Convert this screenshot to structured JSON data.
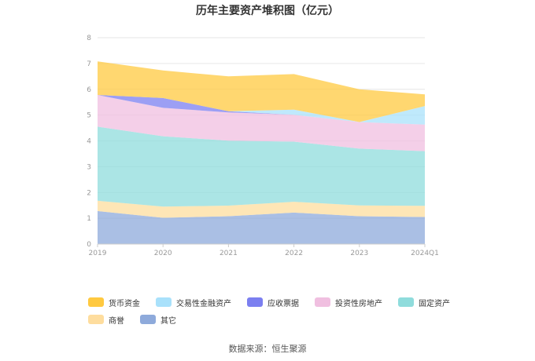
{
  "source_label": "数据来源：恒生聚源",
  "chart_data": {
    "type": "area",
    "stacked": true,
    "title": "历年主要资产堆积图（亿元）",
    "categories": [
      "2019",
      "2020",
      "2021",
      "2022",
      "2023",
      "2024Q1"
    ],
    "ylim": [
      0,
      8
    ],
    "yticks": [
      "0",
      "1",
      "2",
      "3",
      "4",
      "5",
      "6",
      "7",
      "8"
    ],
    "grid": true,
    "legend_position": "bottom",
    "series": [
      {
        "name": "其它",
        "color": "#8eaadb",
        "values": [
          1.28,
          1.02,
          1.08,
          1.22,
          1.08,
          1.05
        ]
      },
      {
        "name": "商誉",
        "color": "#fedd9e",
        "values": [
          0.4,
          0.43,
          0.41,
          0.42,
          0.42,
          0.43
        ]
      },
      {
        "name": "固定资产",
        "color": "#8fdcdc",
        "values": [
          2.87,
          2.73,
          2.52,
          2.33,
          2.2,
          2.12
        ]
      },
      {
        "name": "投资性房地产",
        "color": "#f0bfe0",
        "values": [
          1.23,
          1.1,
          1.09,
          1.04,
          1.03,
          1.03
        ]
      },
      {
        "name": "应收票据",
        "color": "#7b7ff0",
        "values": [
          0.0,
          0.38,
          0.05,
          0.0,
          0.0,
          0.0
        ]
      },
      {
        "name": "交易性金融资产",
        "color": "#a9e1fb",
        "values": [
          0.0,
          0.0,
          0.0,
          0.2,
          0.0,
          0.72
        ]
      },
      {
        "name": "货币资金",
        "color": "#ffc940",
        "values": [
          1.3,
          1.07,
          1.35,
          1.38,
          1.27,
          0.45
        ]
      }
    ],
    "legend_order": [
      "货币资金",
      "交易性金融资产",
      "应收票据",
      "投资性房地产",
      "固定资产",
      "商誉",
      "其它"
    ]
  }
}
